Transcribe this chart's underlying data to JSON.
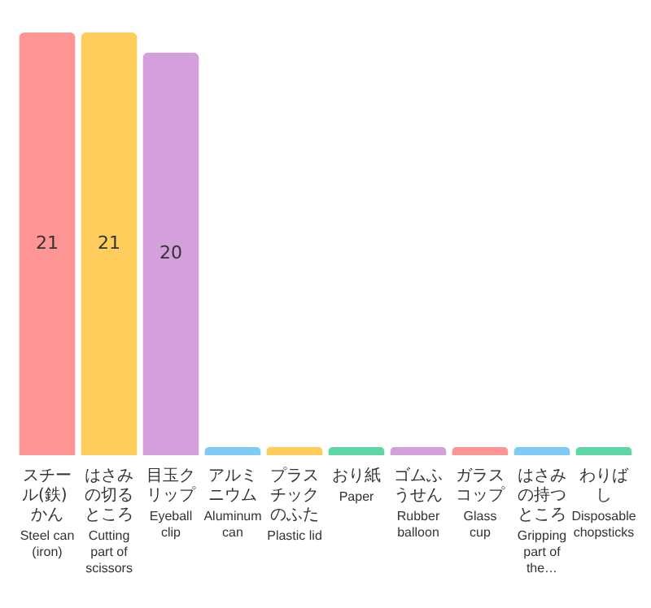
{
  "chart_data": {
    "type": "bar",
    "categories": [
      "スチール(鉄) かん Steel can (iron)",
      "はさみの切るところ Cutting part of scissors",
      "目玉クリップ Eyeball clip",
      "アルミニウム Aluminum can",
      "プラスチックのふた Plastic lid",
      "おり紙 Paper",
      "ゴムふうせん Rubber balloon",
      "ガラスコップ Glass cup",
      "はさみの持つところ Gripping part of the…",
      "わりばし Disposable chopsticks"
    ],
    "values": [
      21,
      21,
      20,
      0.4,
      0.4,
      0.4,
      0.4,
      0.4,
      0.4,
      0.4
    ],
    "value_labels": [
      "21",
      "21",
      "20",
      null,
      null,
      null,
      null,
      null,
      null,
      null
    ],
    "colors": [
      "#ff9494",
      "#ffcd5c",
      "#d4a0dc",
      "#7ecbf5",
      "#ffcd5c",
      "#5fd6a6",
      "#d4a0dc",
      "#ff9494",
      "#7ecbf5",
      "#5fd6a6"
    ],
    "ylim": [
      0,
      21
    ]
  }
}
